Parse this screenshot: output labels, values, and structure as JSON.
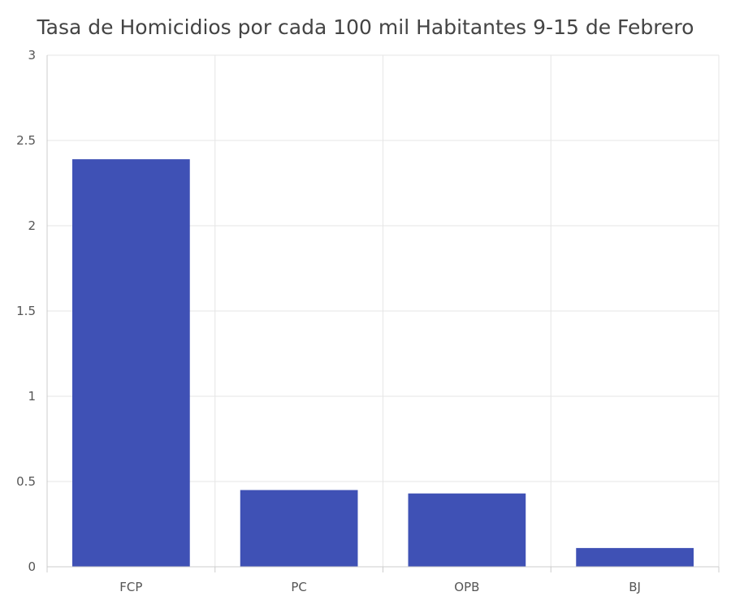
{
  "chart_data": {
    "type": "bar",
    "title": "Tasa de Homicidios por cada 100 mil Habitantes 9-15 de Febrero",
    "xlabel": "",
    "ylabel": "",
    "categories": [
      "FCP",
      "PC",
      "OPB",
      "BJ"
    ],
    "values": [
      2.39,
      0.45,
      0.43,
      0.11
    ],
    "ylim": [
      0,
      3
    ],
    "yticks": [
      "0",
      "0.5",
      "1",
      "1.5",
      "2",
      "2.5",
      "3"
    ],
    "grid": true,
    "legend": "none",
    "colors": {
      "bar": "#3f51b5",
      "grid": "#e6e6e6",
      "axis": "#cccccc"
    }
  }
}
